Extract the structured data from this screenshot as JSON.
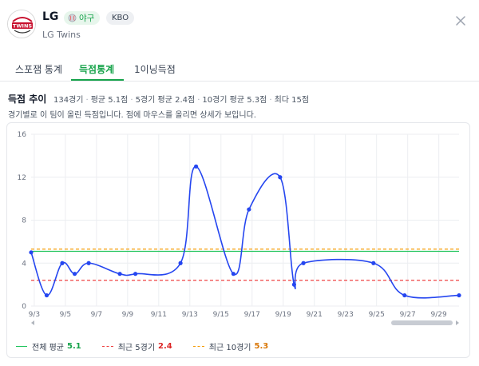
{
  "header": {
    "team_code": "LG",
    "sport_label": "야구",
    "league_label": "KBO",
    "team_name": "LG Twins",
    "logo_icon": "lg-twins-logo",
    "close_icon": "close-icon"
  },
  "tabs": [
    {
      "label": "스포잼 통계",
      "active": false
    },
    {
      "label": "득점통계",
      "active": true
    },
    {
      "label": "1이닝득점",
      "active": false
    }
  ],
  "trend": {
    "title": "득점 추이",
    "summary": {
      "games": "134경기",
      "avg": "평균 5.1점",
      "recent5": "5경기 평균 2.4점",
      "recent10": "10경기 평균 5.3점",
      "max": "최다 15점"
    },
    "description": "경기별로 이 팀이 올린 득점입니다. 점에 마우스를 올리면 상세가 보입니다."
  },
  "legend": {
    "overall": {
      "label": "전체 평균",
      "value": "5.1"
    },
    "recent5": {
      "label": "최근 5경기",
      "value": "2.4"
    },
    "recent10": {
      "label": "최근 10경기",
      "value": "5.3"
    }
  },
  "colors": {
    "accent": "#16a34a",
    "line": "#2546f0",
    "overall_avg": "#22c55e",
    "recent5_avg": "#ef4444",
    "recent10_avg": "#f59e0b"
  },
  "chart_data": {
    "type": "line",
    "y_ticks": [
      0,
      4,
      8,
      12,
      16
    ],
    "ylim": [
      0,
      16
    ],
    "x_ticks": [
      "9/3",
      "9/5",
      "9/7",
      "9/9",
      "9/11",
      "9/13",
      "9/15",
      "9/17",
      "9/19",
      "9/21",
      "9/23",
      "9/25",
      "9/27",
      "9/29"
    ],
    "x_day_range": [
      2.8,
      30.3
    ],
    "grid": true,
    "series": [
      {
        "x": [
          2.8,
          3.8,
          4.8,
          5.6,
          6.5,
          8.5,
          9.5,
          12.4,
          13.4,
          15.8,
          16.8,
          18.8,
          19.7,
          20.3,
          24.8,
          26.8,
          30.3
        ],
        "values": [
          5,
          1,
          4,
          3,
          4,
          3,
          3,
          4,
          13,
          3,
          9,
          12,
          2,
          4,
          4,
          1,
          1
        ]
      }
    ],
    "reference_lines": [
      {
        "label": "전체 평균",
        "value": 5.1
      },
      {
        "label": "최근 5경기",
        "value": 2.4
      },
      {
        "label": "최근 10경기",
        "value": 5.3
      }
    ]
  }
}
